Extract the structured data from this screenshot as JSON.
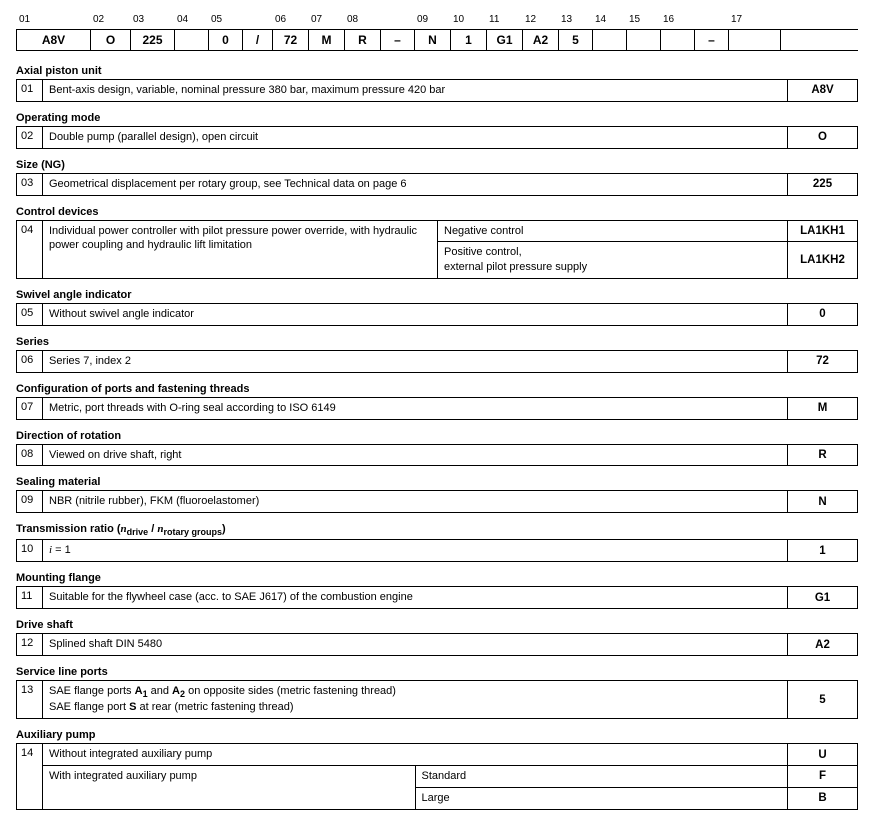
{
  "grid_template": "74px 40px 44px 34px 34px 30px 36px 36px 36px 34px 36px 36px 36px 36px 34px 34px 34px 34px 34px 52px",
  "header_numbers": [
    "01",
    "02",
    "03",
    "04",
    "05",
    "",
    "06",
    "07",
    "08",
    "",
    "09",
    "10",
    "11",
    "12",
    "13",
    "14",
    "15",
    "16",
    "",
    "17"
  ],
  "code_cells": [
    "A8V",
    "O",
    "225",
    "",
    "0",
    "/",
    "72",
    "M",
    "R",
    "–",
    "N",
    "1",
    "G1",
    "A2",
    "5",
    "",
    "",
    "",
    "–",
    ""
  ],
  "sections": [
    {
      "title": "Axial piston unit",
      "rows": [
        {
          "num": "01",
          "desc_html": "Bent-axis design, variable, nominal pressure 380 bar, maximum pressure 420 bar",
          "val": "A8V"
        }
      ]
    },
    {
      "title": "Operating mode",
      "rows": [
        {
          "num": "02",
          "desc_html": "Double pump (parallel design), open circuit",
          "val": "O"
        }
      ]
    },
    {
      "title": "Size (NG)",
      "rows": [
        {
          "num": "03",
          "desc_html": "Geometrical displacement per rotary group, see Technical data on page 6",
          "val": "225"
        }
      ]
    },
    {
      "title": "Control devices",
      "complex": true,
      "base_num": "04",
      "base_desc_html": "Individual power controller with pilot pressure power override, with hydraulic power coupling and hydraulic lift limitation",
      "opts": [
        {
          "opt_html": "Negative control",
          "val": "LA1KH1"
        },
        {
          "opt_html": "Positive control,<br>external pilot pressure supply",
          "val": "LA1KH2"
        }
      ]
    },
    {
      "title": "Swivel angle indicator",
      "rows": [
        {
          "num": "05",
          "desc_html": "Without swivel angle indicator",
          "val": "0"
        }
      ]
    },
    {
      "title": "Series",
      "rows": [
        {
          "num": "06",
          "desc_html": "Series 7, index 2",
          "val": "72"
        }
      ]
    },
    {
      "title": "Configuration of ports and fastening threads",
      "rows": [
        {
          "num": "07",
          "desc_html": "Metric, port threads with O-ring seal according to ISO 6149",
          "val": "M"
        }
      ]
    },
    {
      "title": "Direction of rotation",
      "rows": [
        {
          "num": "08",
          "desc_html": "Viewed on drive shaft, right",
          "val": "R"
        }
      ]
    },
    {
      "title": "Sealing material",
      "rows": [
        {
          "num": "09",
          "desc_html": "NBR (nitrile rubber), FKM (fluoroelastomer)",
          "val": "N"
        }
      ]
    },
    {
      "title_html": "Transmission ratio (<span class=\"ital\">n</span><sub class=\"ratio-sub\">drive</sub> / <span class=\"ital\">n</span><sub class=\"ratio-sub\">rotary groups</sub>)",
      "rows": [
        {
          "num": "10",
          "desc_html": "<span class=\"ital\">i</span> = 1",
          "val": "1"
        }
      ]
    },
    {
      "title": "Mounting flange",
      "rows": [
        {
          "num": "11",
          "desc_html": "Suitable for the flywheel case (acc. to SAE J617) of the combustion engine",
          "val": "G1"
        }
      ]
    },
    {
      "title": "Drive shaft",
      "rows": [
        {
          "num": "12",
          "desc_html": "Splined shaft DIN 5480",
          "val": "A2"
        }
      ]
    },
    {
      "title": "Service line ports",
      "rows": [
        {
          "num": "13",
          "desc_html": "SAE flange ports <b>A<sub>1</sub></b> and <b>A<sub>2</sub></b> on opposite sides (metric fastening thread)<br>SAE flange port <b>S</b> at rear (metric fastening thread)",
          "val": "5"
        }
      ]
    },
    {
      "title": "Auxiliary pump",
      "aux": true,
      "base_num": "14",
      "rows": [
        {
          "desc_html": "Without integrated auxiliary pump",
          "opt_html": "",
          "val": "U"
        },
        {
          "desc_html": "With integrated auxiliary pump",
          "opt_html": "Standard",
          "val": "F"
        },
        {
          "desc_html": "",
          "opt_html": "Large",
          "val": "B",
          "merge_desc": true
        }
      ]
    }
  ]
}
